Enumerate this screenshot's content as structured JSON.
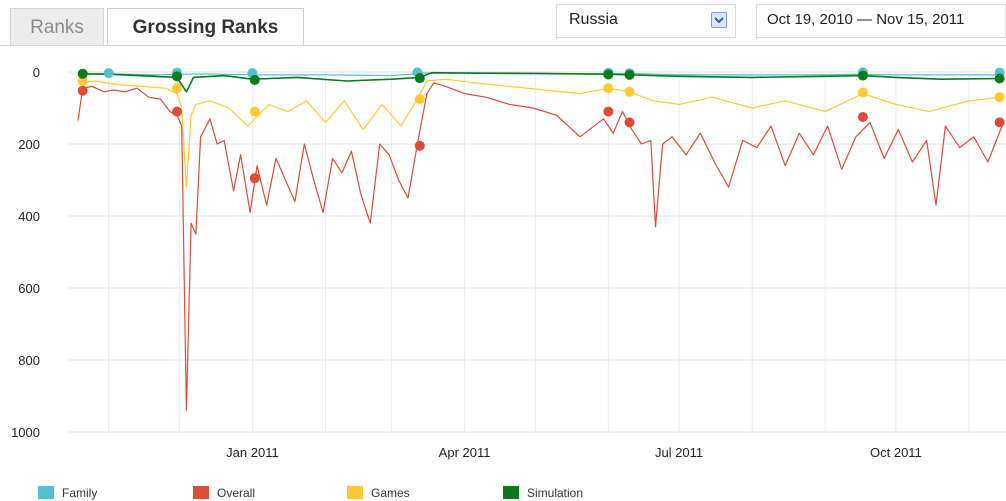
{
  "tabs": {
    "ranks_label": "Ranks",
    "grossing_label": "Grossing Ranks"
  },
  "country_select": {
    "selected": "Russia"
  },
  "date_range": {
    "label": "Oct 19, 2010 — Nov 15, 2011"
  },
  "chart_data": {
    "type": "line",
    "x_start": "2010-10-19",
    "x_end": "2011-11-15",
    "x_ticks": [
      {
        "date": "2011-01-01",
        "label": "Jan 2011"
      },
      {
        "date": "2011-04-01",
        "label": "Apr 2011"
      },
      {
        "date": "2011-07-01",
        "label": "Jul 2011"
      },
      {
        "date": "2011-10-01",
        "label": "Oct 2011"
      }
    ],
    "y_ticks": [
      0,
      200,
      400,
      600,
      800,
      1000
    ],
    "ylim": [
      0,
      1000
    ],
    "y_inverted": true,
    "grid": true,
    "legend_position": "bottom",
    "series": [
      {
        "name": "Family",
        "color": "#4fc1d1",
        "values": [
          [
            "2010-10-19",
            5
          ],
          [
            "2010-11-01",
            5
          ],
          [
            "2010-11-20",
            8
          ],
          [
            "2010-12-10",
            5
          ],
          [
            "2011-01-01",
            8
          ],
          [
            "2011-02-01",
            8
          ],
          [
            "2011-03-01",
            10
          ],
          [
            "2011-03-15",
            3
          ],
          [
            "2011-04-01",
            3
          ],
          [
            "2011-05-01",
            5
          ],
          [
            "2011-06-01",
            5
          ],
          [
            "2011-06-10",
            4
          ],
          [
            "2011-07-01",
            8
          ],
          [
            "2011-08-01",
            8
          ],
          [
            "2011-09-01",
            8
          ],
          [
            "2011-09-15",
            6
          ],
          [
            "2011-10-01",
            8
          ],
          [
            "2011-11-15",
            8
          ]
        ],
        "markers": [
          [
            "2010-11-01",
            3
          ],
          [
            "2010-11-30",
            2
          ],
          [
            "2011-01-01",
            3
          ],
          [
            "2011-03-12",
            1
          ],
          [
            "2011-06-01",
            2
          ],
          [
            "2011-06-10",
            3
          ],
          [
            "2011-09-17",
            1
          ],
          [
            "2011-11-14",
            2
          ]
        ]
      },
      {
        "name": "Overall",
        "color": "#dd4b39",
        "values": [
          [
            "2010-10-19",
            135
          ],
          [
            "2010-10-21",
            45
          ],
          [
            "2010-10-25",
            40
          ],
          [
            "2010-10-30",
            55
          ],
          [
            "2010-11-03",
            50
          ],
          [
            "2010-11-08",
            55
          ],
          [
            "2010-11-13",
            45
          ],
          [
            "2010-11-18",
            70
          ],
          [
            "2010-11-23",
            75
          ],
          [
            "2010-11-27",
            110
          ],
          [
            "2010-11-30",
            120
          ],
          [
            "2010-12-02",
            150
          ],
          [
            "2010-12-04",
            940
          ],
          [
            "2010-12-06",
            420
          ],
          [
            "2010-12-08",
            450
          ],
          [
            "2010-12-10",
            180
          ],
          [
            "2010-12-14",
            130
          ],
          [
            "2010-12-17",
            200
          ],
          [
            "2010-12-20",
            190
          ],
          [
            "2010-12-24",
            330
          ],
          [
            "2010-12-27",
            230
          ],
          [
            "2010-12-31",
            390
          ],
          [
            "2011-01-03",
            260
          ],
          [
            "2011-01-07",
            370
          ],
          [
            "2011-01-11",
            240
          ],
          [
            "2011-01-15",
            300
          ],
          [
            "2011-01-19",
            360
          ],
          [
            "2011-01-23",
            200
          ],
          [
            "2011-01-27",
            300
          ],
          [
            "2011-01-31",
            390
          ],
          [
            "2011-02-04",
            240
          ],
          [
            "2011-02-08",
            280
          ],
          [
            "2011-02-12",
            220
          ],
          [
            "2011-02-16",
            340
          ],
          [
            "2011-02-20",
            420
          ],
          [
            "2011-02-24",
            200
          ],
          [
            "2011-02-28",
            230
          ],
          [
            "2011-03-04",
            300
          ],
          [
            "2011-03-08",
            350
          ],
          [
            "2011-03-12",
            200
          ],
          [
            "2011-03-14",
            130
          ],
          [
            "2011-03-16",
            60
          ],
          [
            "2011-03-19",
            30
          ],
          [
            "2011-03-24",
            40
          ],
          [
            "2011-04-01",
            60
          ],
          [
            "2011-04-10",
            70
          ],
          [
            "2011-04-20",
            90
          ],
          [
            "2011-04-30",
            100
          ],
          [
            "2011-05-10",
            120
          ],
          [
            "2011-05-20",
            180
          ],
          [
            "2011-05-30",
            130
          ],
          [
            "2011-06-03",
            170
          ],
          [
            "2011-06-07",
            110
          ],
          [
            "2011-06-11",
            160
          ],
          [
            "2011-06-15",
            200
          ],
          [
            "2011-06-19",
            190
          ],
          [
            "2011-06-21",
            430
          ],
          [
            "2011-06-24",
            200
          ],
          [
            "2011-06-28",
            180
          ],
          [
            "2011-07-04",
            230
          ],
          [
            "2011-07-10",
            170
          ],
          [
            "2011-07-16",
            250
          ],
          [
            "2011-07-22",
            320
          ],
          [
            "2011-07-28",
            190
          ],
          [
            "2011-08-03",
            210
          ],
          [
            "2011-08-09",
            150
          ],
          [
            "2011-08-15",
            260
          ],
          [
            "2011-08-21",
            170
          ],
          [
            "2011-08-27",
            230
          ],
          [
            "2011-09-02",
            150
          ],
          [
            "2011-09-08",
            270
          ],
          [
            "2011-09-14",
            180
          ],
          [
            "2011-09-20",
            140
          ],
          [
            "2011-09-26",
            240
          ],
          [
            "2011-10-02",
            160
          ],
          [
            "2011-10-08",
            250
          ],
          [
            "2011-10-14",
            190
          ],
          [
            "2011-10-18",
            370
          ],
          [
            "2011-10-22",
            150
          ],
          [
            "2011-10-28",
            210
          ],
          [
            "2011-11-03",
            180
          ],
          [
            "2011-11-09",
            250
          ],
          [
            "2011-11-15",
            150
          ]
        ],
        "markers": [
          [
            "2010-10-21",
            52
          ],
          [
            "2010-11-30",
            110
          ],
          [
            "2011-01-02",
            295
          ],
          [
            "2011-03-13",
            205
          ],
          [
            "2011-06-01",
            110
          ],
          [
            "2011-06-10",
            140
          ],
          [
            "2011-09-17",
            125
          ],
          [
            "2011-11-14",
            140
          ]
        ]
      },
      {
        "name": "Games",
        "color": "#ffc933",
        "values": [
          [
            "2010-10-19",
            30
          ],
          [
            "2010-10-26",
            25
          ],
          [
            "2010-11-05",
            35
          ],
          [
            "2010-11-15",
            40
          ],
          [
            "2010-11-25",
            45
          ],
          [
            "2010-11-30",
            60
          ],
          [
            "2010-12-02",
            100
          ],
          [
            "2010-12-04",
            320
          ],
          [
            "2010-12-06",
            120
          ],
          [
            "2010-12-08",
            90
          ],
          [
            "2010-12-14",
            80
          ],
          [
            "2010-12-22",
            100
          ],
          [
            "2010-12-30",
            150
          ],
          [
            "2011-01-08",
            90
          ],
          [
            "2011-01-16",
            110
          ],
          [
            "2011-01-24",
            80
          ],
          [
            "2011-02-01",
            140
          ],
          [
            "2011-02-09",
            80
          ],
          [
            "2011-02-17",
            160
          ],
          [
            "2011-02-25",
            90
          ],
          [
            "2011-03-05",
            150
          ],
          [
            "2011-03-12",
            75
          ],
          [
            "2011-03-16",
            25
          ],
          [
            "2011-03-24",
            20
          ],
          [
            "2011-04-05",
            30
          ],
          [
            "2011-04-20",
            40
          ],
          [
            "2011-05-05",
            50
          ],
          [
            "2011-05-20",
            60
          ],
          [
            "2011-06-01",
            45
          ],
          [
            "2011-06-10",
            55
          ],
          [
            "2011-06-20",
            80
          ],
          [
            "2011-07-01",
            90
          ],
          [
            "2011-07-15",
            70
          ],
          [
            "2011-08-01",
            100
          ],
          [
            "2011-08-15",
            80
          ],
          [
            "2011-09-01",
            110
          ],
          [
            "2011-09-17",
            60
          ],
          [
            "2011-10-01",
            90
          ],
          [
            "2011-10-15",
            110
          ],
          [
            "2011-11-01",
            80
          ],
          [
            "2011-11-15",
            70
          ]
        ],
        "markers": [
          [
            "2010-10-21",
            25
          ],
          [
            "2010-11-30",
            45
          ],
          [
            "2011-01-02",
            110
          ],
          [
            "2011-03-13",
            75
          ],
          [
            "2011-06-01",
            45
          ],
          [
            "2011-06-10",
            55
          ],
          [
            "2011-09-17",
            57
          ],
          [
            "2011-11-14",
            70
          ]
        ]
      },
      {
        "name": "Simulation",
        "color": "#0b7a1c",
        "values": [
          [
            "2010-10-19",
            5
          ],
          [
            "2010-11-01",
            6
          ],
          [
            "2010-11-20",
            12
          ],
          [
            "2010-11-30",
            15
          ],
          [
            "2010-12-04",
            55
          ],
          [
            "2010-12-07",
            15
          ],
          [
            "2010-12-20",
            10
          ],
          [
            "2011-01-01",
            20
          ],
          [
            "2011-01-20",
            15
          ],
          [
            "2011-02-10",
            25
          ],
          [
            "2011-03-01",
            20
          ],
          [
            "2011-03-13",
            15
          ],
          [
            "2011-03-18",
            2
          ],
          [
            "2011-04-01",
            3
          ],
          [
            "2011-05-01",
            4
          ],
          [
            "2011-06-01",
            6
          ],
          [
            "2011-07-01",
            12
          ],
          [
            "2011-08-01",
            15
          ],
          [
            "2011-09-01",
            12
          ],
          [
            "2011-09-17",
            10
          ],
          [
            "2011-10-01",
            15
          ],
          [
            "2011-10-20",
            20
          ],
          [
            "2011-11-15",
            18
          ]
        ],
        "markers": [
          [
            "2010-10-21",
            5
          ],
          [
            "2010-11-30",
            12
          ],
          [
            "2011-01-02",
            22
          ],
          [
            "2011-03-13",
            17
          ],
          [
            "2011-06-01",
            7
          ],
          [
            "2011-06-10",
            8
          ],
          [
            "2011-09-17",
            10
          ],
          [
            "2011-11-14",
            18
          ]
        ]
      }
    ]
  }
}
